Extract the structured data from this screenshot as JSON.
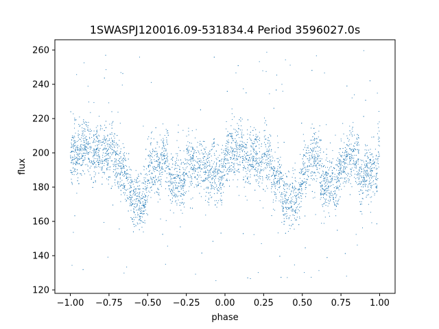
{
  "chart_data": {
    "type": "scatter",
    "title": "1SWASPJ120016.09-531834.4 Period 3596027.0s",
    "xlabel": "phase",
    "ylabel": "flux",
    "xlim": [
      -1.1,
      1.1
    ],
    "ylim": [
      118,
      266
    ],
    "xticks": [
      -1.0,
      -0.75,
      -0.5,
      -0.25,
      0.0,
      0.25,
      0.5,
      0.75,
      1.0
    ],
    "xtick_labels": [
      "−1.00",
      "−0.75",
      "−0.50",
      "−0.25",
      "0.00",
      "0.25",
      "0.50",
      "0.75",
      "1.00"
    ],
    "yticks": [
      120,
      140,
      160,
      180,
      200,
      220,
      240,
      260
    ],
    "ytick_labels": [
      "120",
      "140",
      "160",
      "180",
      "200",
      "220",
      "240",
      "260"
    ],
    "grid": false,
    "legend": "none",
    "marker_color": "#1f77b4",
    "series": [
      {
        "x_range": [
          -1.0,
          1.0
        ],
        "trend": [
          [
            -1.0,
            193
          ],
          [
            -0.95,
            197
          ],
          [
            -0.9,
            200
          ],
          [
            -0.85,
            203
          ],
          [
            -0.8,
            204
          ],
          [
            -0.75,
            200
          ],
          [
            -0.7,
            189
          ],
          [
            -0.65,
            183
          ],
          [
            -0.6,
            180
          ],
          [
            -0.55,
            177
          ],
          [
            -0.5,
            182
          ],
          [
            -0.45,
            189
          ],
          [
            -0.4,
            190
          ],
          [
            -0.35,
            188
          ],
          [
            -0.3,
            186
          ],
          [
            -0.25,
            188
          ],
          [
            -0.2,
            190
          ],
          [
            -0.15,
            192
          ],
          [
            -0.1,
            193
          ],
          [
            -0.05,
            192
          ],
          [
            0.0,
            193
          ],
          [
            0.05,
            197
          ],
          [
            0.1,
            200
          ],
          [
            0.15,
            203
          ],
          [
            0.2,
            204
          ],
          [
            0.25,
            200
          ],
          [
            0.3,
            189
          ],
          [
            0.35,
            183
          ],
          [
            0.4,
            180
          ],
          [
            0.45,
            177
          ],
          [
            0.5,
            182
          ],
          [
            0.55,
            189
          ],
          [
            0.6,
            190
          ],
          [
            0.65,
            188
          ],
          [
            0.7,
            186
          ],
          [
            0.75,
            188
          ],
          [
            0.8,
            190
          ],
          [
            0.85,
            192
          ],
          [
            0.9,
            193
          ],
          [
            0.95,
            192
          ],
          [
            1.0,
            193
          ]
        ],
        "scatter_spread": 8,
        "outlier_range": [
          125,
          260
        ]
      }
    ]
  }
}
